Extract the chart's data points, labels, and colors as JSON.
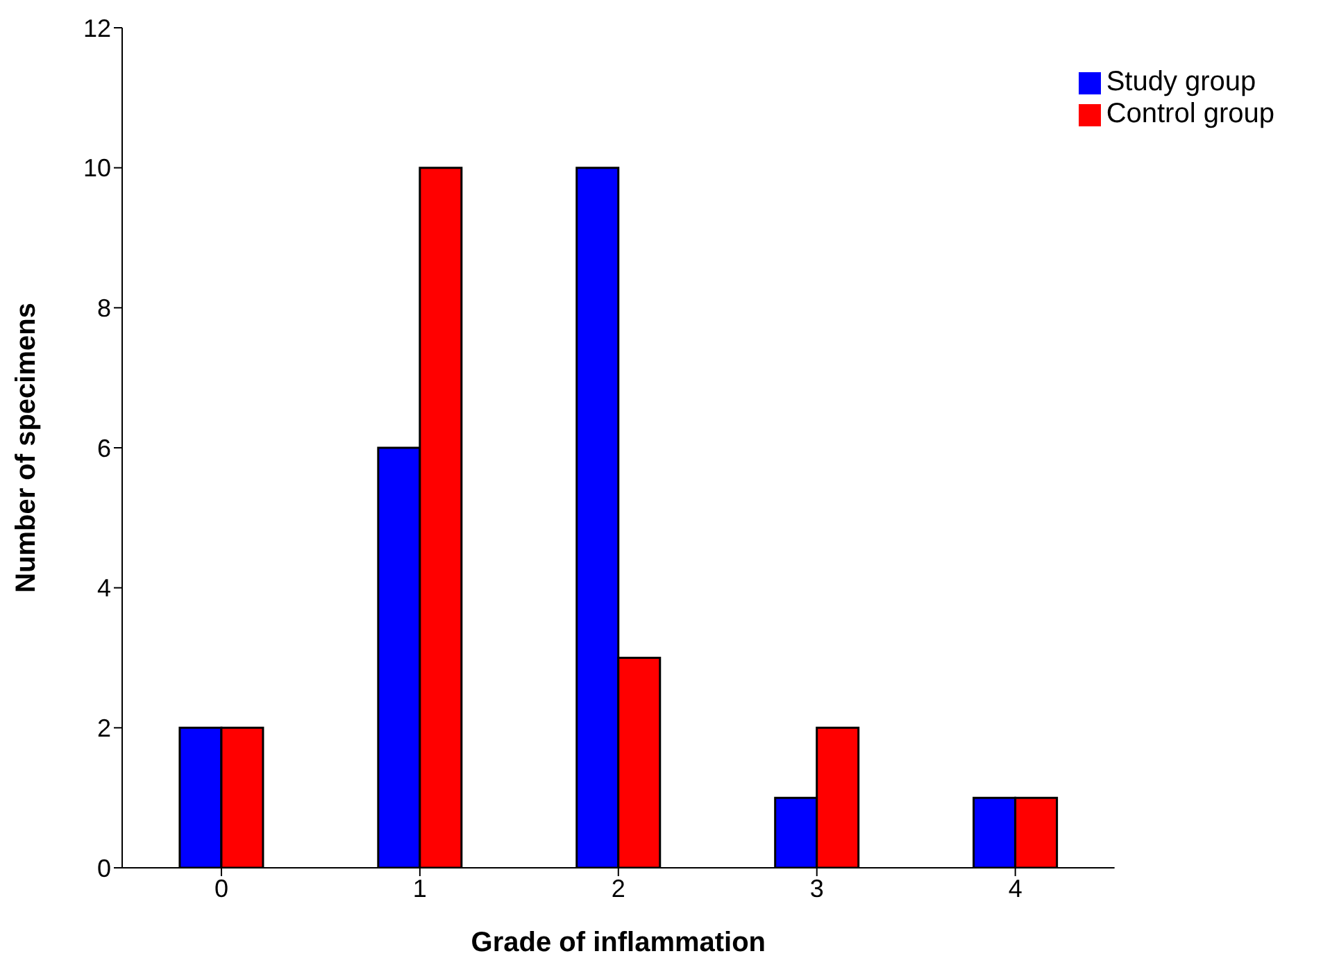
{
  "chart_data": {
    "type": "bar",
    "xlabel": "Grade of inflammation",
    "ylabel": "Number of specimens",
    "categories": [
      "0",
      "1",
      "2",
      "3",
      "4"
    ],
    "series": [
      {
        "name": "Study group",
        "color": "#0000ff",
        "values": [
          2,
          6,
          10,
          1,
          1
        ]
      },
      {
        "name": "Control group",
        "color": "#ff0000",
        "values": [
          2,
          10,
          3,
          2,
          1
        ]
      }
    ],
    "ylim": [
      0,
      12
    ],
    "yticks": [
      0,
      2,
      4,
      6,
      8,
      10,
      12
    ],
    "grid": false,
    "legend": "top right"
  }
}
